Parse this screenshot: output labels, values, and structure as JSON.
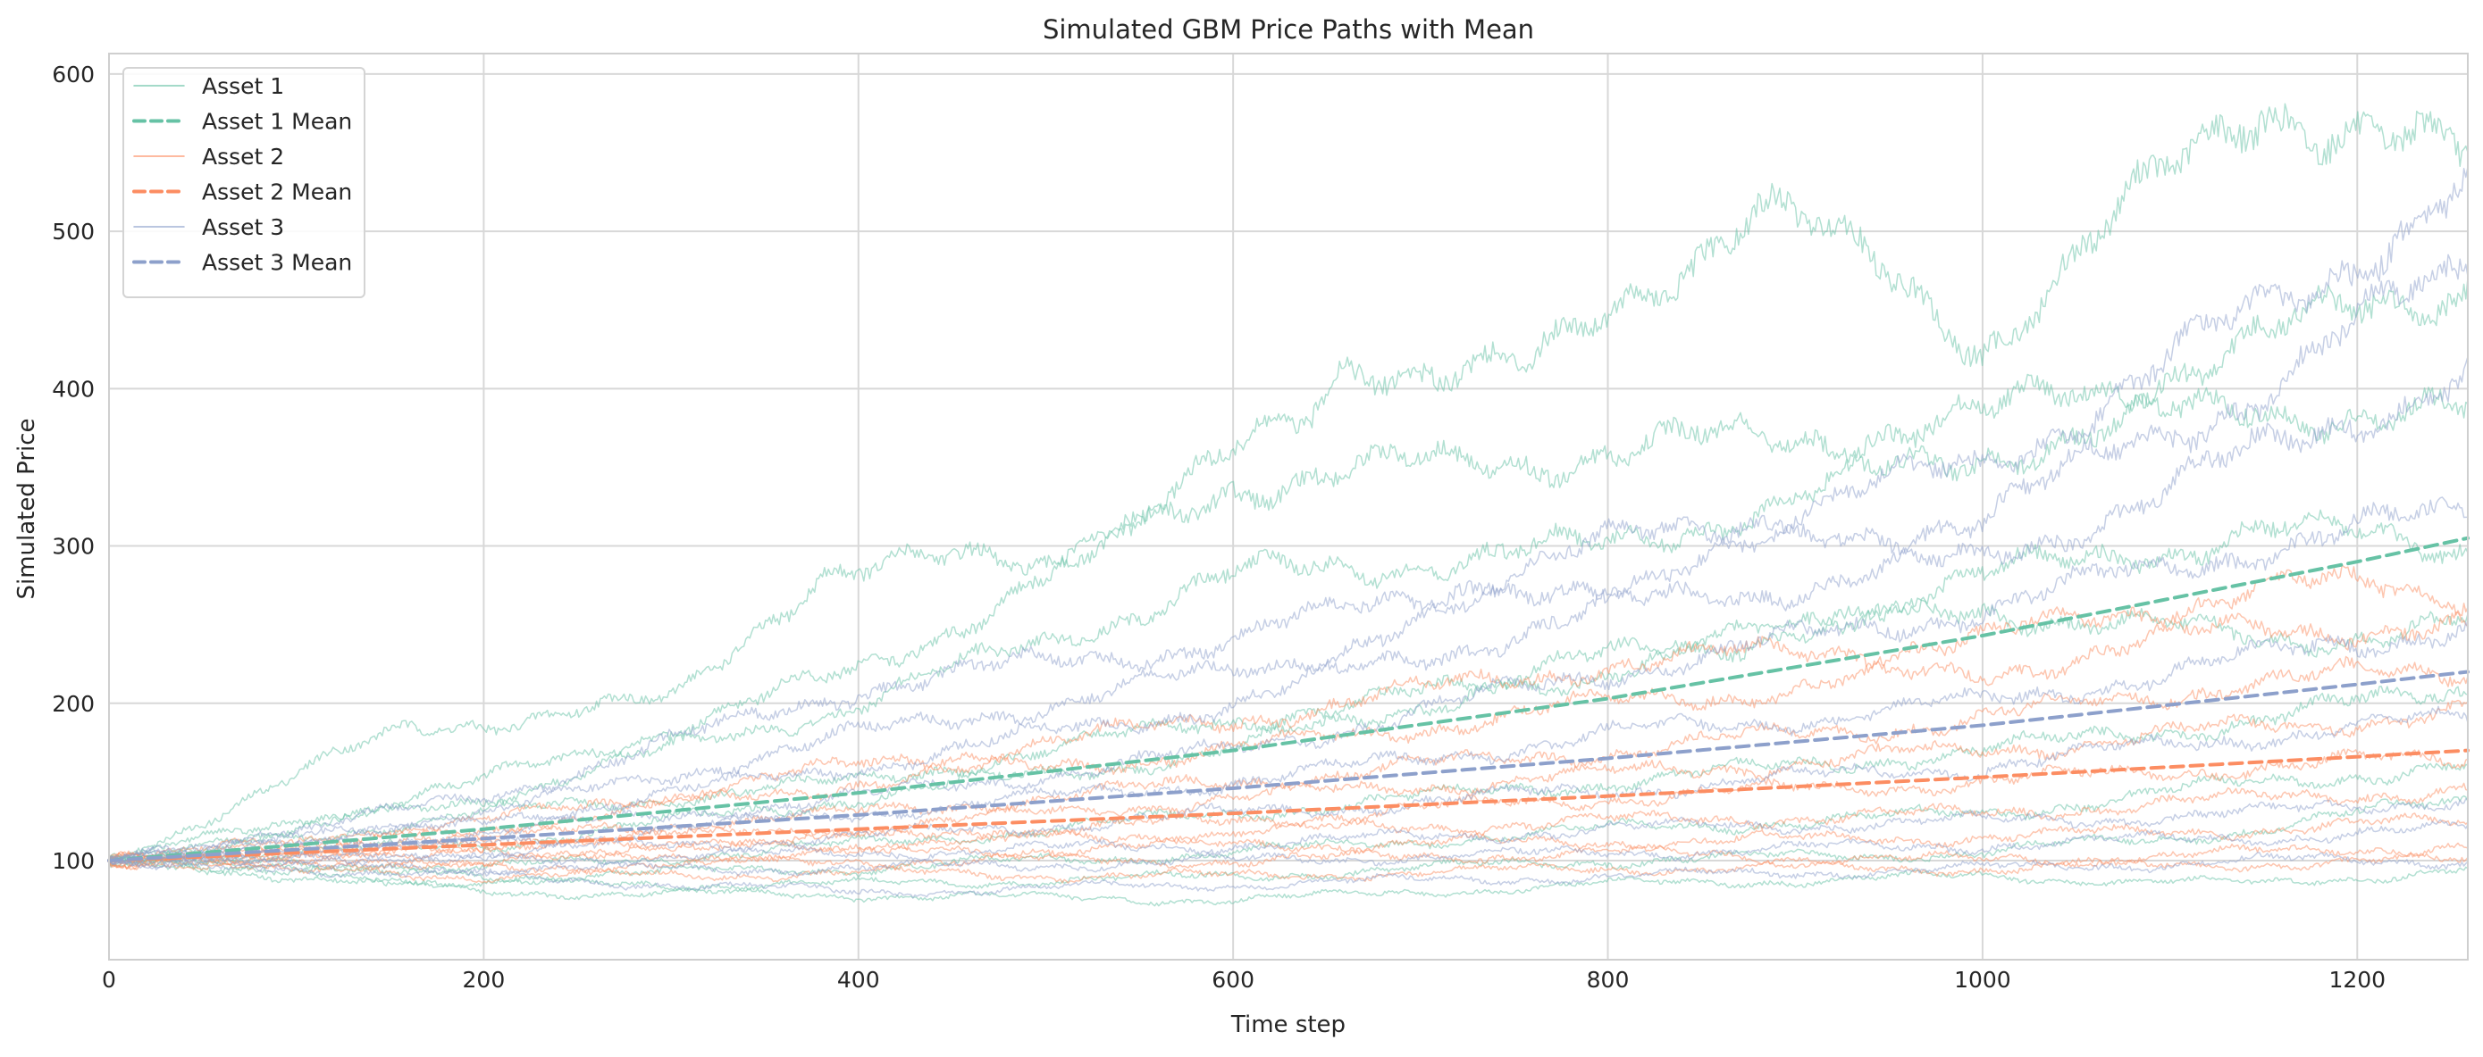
{
  "chart_data": {
    "type": "line",
    "title": "Simulated GBM Price Paths with Mean",
    "xlabel": "Time step",
    "ylabel": "Simulated Price",
    "xlim": [
      0,
      1259
    ],
    "ylim": [
      37,
      613
    ],
    "xticks": [
      0,
      200,
      400,
      600,
      800,
      1000,
      1200
    ],
    "yticks": [
      100,
      200,
      300,
      400,
      500,
      600
    ],
    "grid": true,
    "legend_position": "top-left",
    "legend": [
      {
        "label": "Asset 1",
        "color": "#66c2a5",
        "style": "thin"
      },
      {
        "label": "Asset 1 Mean",
        "color": "#66c2a5",
        "style": "dashed"
      },
      {
        "label": "Asset 2",
        "color": "#fc8d62",
        "style": "thin"
      },
      {
        "label": "Asset 2 Mean",
        "color": "#fc8d62",
        "style": "dashed"
      },
      {
        "label": "Asset 3",
        "color": "#8da0cb",
        "style": "thin"
      },
      {
        "label": "Asset 3 Mean",
        "color": "#8da0cb",
        "style": "dashed"
      }
    ],
    "assets": [
      {
        "name": "Asset 1",
        "mean_name": "Asset 1 Mean",
        "color": "#66c2a5",
        "mean": {
          "x": [
            0,
            200,
            400,
            600,
            800,
            1000,
            1200,
            1259
          ],
          "y": [
            100,
            120,
            143,
            170,
            203,
            243,
            290,
            305
          ]
        },
        "paths": [
          {
            "x": [
              0,
              160,
              300,
              380,
              500,
              640,
              660,
              760,
              880,
              1000,
              1150,
              1259
            ],
            "y": [
              100,
              185,
              200,
              285,
              290,
              380,
              420,
              410,
              520,
              430,
              585,
              540
            ]
          },
          {
            "x": [
              0,
              200,
              400,
              600,
              800,
              1000,
              1150,
              1259
            ],
            "y": [
              100,
              150,
              220,
              340,
              360,
              380,
              430,
              470
            ]
          },
          {
            "x": [
              0,
              200,
              400,
              600,
              800,
              1000,
              1150,
              1259
            ],
            "y": [
              100,
              140,
              200,
              280,
              300,
              360,
              390,
              380
            ]
          },
          {
            "x": [
              0,
              200,
              400,
              600,
              800,
              1000,
              1150,
              1259
            ],
            "y": [
              100,
              130,
              150,
              190,
              220,
              280,
              310,
              300
            ]
          },
          {
            "x": [
              0,
              200,
              400,
              600,
              800,
              1000,
              1150,
              1259
            ],
            "y": [
              100,
              110,
              140,
              170,
              230,
              260,
              240,
              250
            ]
          },
          {
            "x": [
              0,
              200,
              400,
              600,
              800,
              1000,
              1150,
              1259
            ],
            "y": [
              100,
              95,
              110,
              130,
              150,
              170,
              190,
              210
            ]
          },
          {
            "x": [
              0,
              200,
              400,
              600,
              800,
              1000,
              1150,
              1259
            ],
            "y": [
              100,
              90,
              95,
              105,
              120,
              130,
              150,
              160
            ]
          },
          {
            "x": [
              0,
              200,
              400,
              600,
              800,
              1000,
              1150,
              1259
            ],
            "y": [
              100,
              85,
              85,
              90,
              100,
              105,
              120,
              140
            ]
          },
          {
            "x": [
              0,
              200,
              400,
              600,
              800,
              1000,
              1150,
              1259
            ],
            "y": [
              100,
              80,
              78,
              75,
              85,
              90,
              85,
              95
            ]
          }
        ]
      },
      {
        "name": "Asset 2",
        "mean_name": "Asset 2 Mean",
        "color": "#fc8d62",
        "mean": {
          "x": [
            0,
            200,
            400,
            600,
            800,
            1000,
            1200,
            1259
          ],
          "y": [
            100,
            110,
            120,
            130,
            141,
            153,
            166,
            170
          ]
        },
        "paths": [
          {
            "x": [
              0,
              200,
              400,
              600,
              800,
              1000,
              1150,
              1259
            ],
            "y": [
              100,
              125,
              160,
              190,
              225,
              240,
              275,
              270
            ]
          },
          {
            "x": [
              0,
              200,
              400,
              600,
              800,
              1000,
              1150,
              1259
            ],
            "y": [
              100,
              120,
              150,
              170,
              200,
              220,
              250,
              245
            ]
          },
          {
            "x": [
              0,
              200,
              400,
              600,
              800,
              1000,
              1150,
              1259
            ],
            "y": [
              100,
              115,
              130,
              150,
              170,
              190,
              215,
              220
            ]
          },
          {
            "x": [
              0,
              200,
              400,
              600,
              800,
              1000,
              1150,
              1259
            ],
            "y": [
              100,
              112,
              120,
              140,
              155,
              170,
              185,
              195
            ]
          },
          {
            "x": [
              0,
              200,
              400,
              600,
              800,
              1000,
              1150,
              1259
            ],
            "y": [
              100,
              108,
              115,
              125,
              140,
              150,
              160,
              165
            ]
          },
          {
            "x": [
              0,
              200,
              400,
              600,
              800,
              1000,
              1150,
              1259
            ],
            "y": [
              100,
              105,
              110,
              118,
              125,
              130,
              140,
              145
            ]
          },
          {
            "x": [
              0,
              200,
              400,
              600,
              800,
              1000,
              1150,
              1259
            ],
            "y": [
              100,
              100,
              105,
              110,
              112,
              115,
              120,
              125
            ]
          },
          {
            "x": [
              0,
              200,
              400,
              600,
              800,
              1000,
              1150,
              1259
            ],
            "y": [
              100,
              95,
              100,
              100,
              105,
              100,
              105,
              110
            ]
          },
          {
            "x": [
              0,
              200,
              400,
              600,
              800,
              1000,
              1150,
              1259
            ],
            "y": [
              100,
              90,
              92,
              90,
              95,
              95,
              98,
              100
            ]
          }
        ]
      },
      {
        "name": "Asset 3",
        "mean_name": "Asset 3 Mean",
        "color": "#8da0cb",
        "mean": {
          "x": [
            0,
            200,
            400,
            600,
            800,
            1000,
            1200,
            1259
          ],
          "y": [
            100,
            114,
            129,
            146,
            165,
            186,
            212,
            220
          ]
        },
        "paths": [
          {
            "x": [
              0,
              200,
              400,
              600,
              800,
              1000,
              1150,
              1259
            ],
            "y": [
              100,
              140,
              210,
              240,
              300,
              350,
              450,
              530
            ]
          },
          {
            "x": [
              0,
              200,
              400,
              600,
              800,
              1000,
              1150,
              1259
            ],
            "y": [
              100,
              130,
              180,
              220,
              280,
              320,
              400,
              480
            ]
          },
          {
            "x": [
              0,
              200,
              400,
              600,
              800,
              1000,
              1150,
              1259
            ],
            "y": [
              100,
              125,
              160,
              200,
              260,
              290,
              360,
              410
            ]
          },
          {
            "x": [
              0,
              200,
              400,
              600,
              800,
              1000,
              1150,
              1259
            ],
            "y": [
              100,
              118,
              140,
              170,
              220,
              260,
              300,
              320
            ]
          },
          {
            "x": [
              0,
              200,
              400,
              600,
              800,
              1000,
              1150,
              1259
            ],
            "y": [
              100,
              110,
              130,
              150,
              180,
              200,
              230,
              250
            ]
          },
          {
            "x": [
              0,
              200,
              400,
              600,
              800,
              1000,
              1150,
              1259
            ],
            "y": [
              100,
              105,
              115,
              130,
              145,
              160,
              180,
              190
            ]
          },
          {
            "x": [
              0,
              200,
              400,
              600,
              800,
              1000,
              1150,
              1259
            ],
            "y": [
              100,
              100,
              105,
              110,
              120,
              125,
              130,
              140
            ]
          },
          {
            "x": [
              0,
              200,
              400,
              600,
              800,
              1000,
              1150,
              1259
            ],
            "y": [
              100,
              95,
              95,
              100,
              105,
              110,
              115,
              120
            ]
          },
          {
            "x": [
              0,
              200,
              400,
              600,
              800,
              1000,
              1150,
              1259
            ],
            "y": [
              100,
              90,
              80,
              85,
              90,
              95,
              100,
              100
            ]
          }
        ]
      }
    ]
  }
}
